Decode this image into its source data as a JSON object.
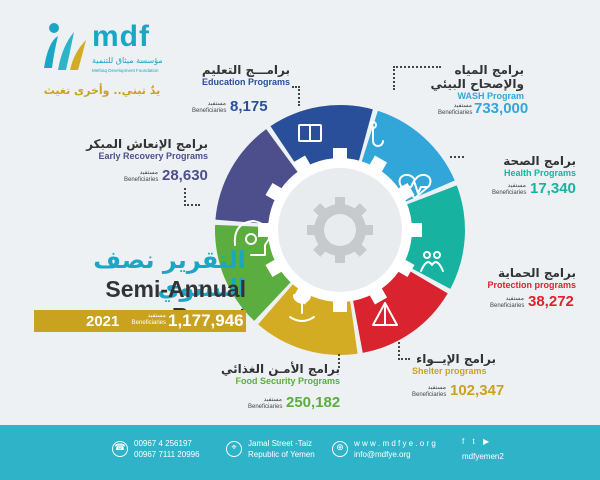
{
  "org": {
    "logo_text": "mdf",
    "logo_sub_ar": "مؤسسة ميثاق للتنمية",
    "logo_sub_en": "Methaq Development Foundation",
    "slogan_ar": "يدٌ تبني.. وأخرى تغيث"
  },
  "report": {
    "title_ar": "التقرير نصف السنوي",
    "title_en": "Semi-Annual Report",
    "year": "2021",
    "total_ben_ar": "مستفيد",
    "total_ben_en": "Beneficiaries",
    "total": "1,177,946"
  },
  "programs": [
    {
      "key": "education",
      "title_ar": "برامـــج التعليم",
      "title_en": "Education Programs",
      "ben_ar": "مستفيد",
      "ben_en": "Beneficiaries",
      "value": "8,175",
      "color": "#2a4f9a"
    },
    {
      "key": "wash",
      "title_ar": "برامج المياه",
      "title_ar2": "والإصحاح البيئي",
      "title_en": "WASH Program",
      "ben_ar": "مستفيد",
      "ben_en": "Beneficiaries",
      "value": "733,000",
      "color": "#32a6d9"
    },
    {
      "key": "health",
      "title_ar": "برامج الصحة",
      "title_en": "Health Programs",
      "ben_ar": "مستفيد",
      "ben_en": "Beneficiaries",
      "value": "17,340",
      "color": "#17b3a0"
    },
    {
      "key": "protection",
      "title_ar": "برامج الحماية",
      "title_en": "Protection programs",
      "ben_ar": "مستفيد",
      "ben_en": "Beneficiaries",
      "value": "38,272",
      "color": "#d9232e"
    },
    {
      "key": "shelter",
      "title_ar": "برامج الإيــواء",
      "title_en": "Shelter programs",
      "ben_ar": "مستفيد",
      "ben_en": "Beneficiaries",
      "value": "102,347",
      "color": "#d4ac23"
    },
    {
      "key": "food",
      "title_ar": "برامج الأمـن الغذائي",
      "title_en": "Food Security Programs",
      "ben_ar": "مستفيد",
      "ben_en": "Beneficiaries",
      "value": "250,182",
      "color": "#5aad3e"
    },
    {
      "key": "early",
      "title_ar": "برامج الإنعاش المبكر",
      "title_en": "Early Recovery Programs",
      "ben_ar": "مستفيد",
      "ben_en": "Beneficiaries",
      "value": "28,630",
      "color": "#4c4f8c"
    }
  ],
  "footer": {
    "phone1": "00967 4 256197",
    "phone2": "00967 7111 20996",
    "address1": "Jamal Street -Taiz",
    "address2": "Republic of Yemen",
    "web": "w w w . m d f y e . o r g",
    "email": "info@mdfye.org",
    "social_handle": "mdfyemen2",
    "social_icons": [
      "facebook-icon",
      "twitter-icon",
      "youtube-icon"
    ]
  }
}
